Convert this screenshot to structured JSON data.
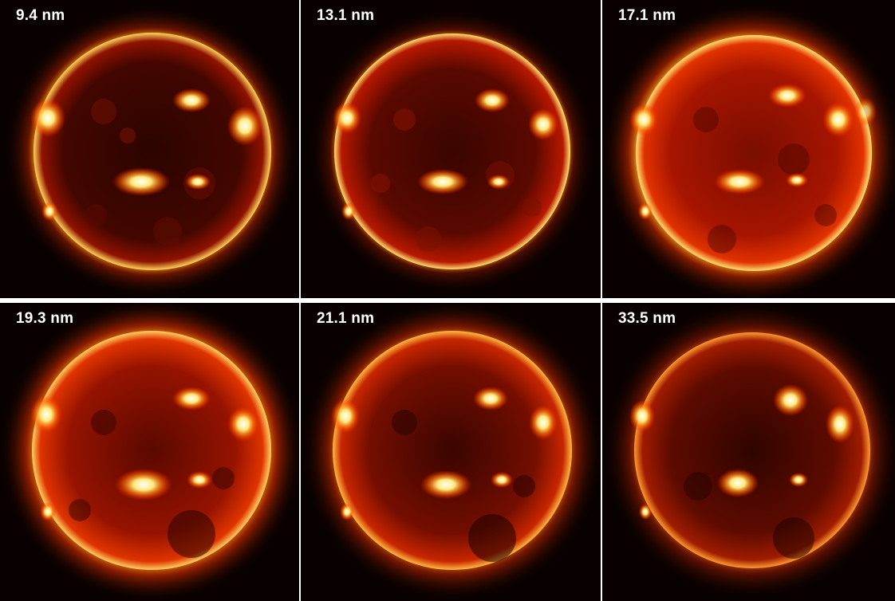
{
  "panels": [
    {
      "label": "9.4 nm"
    },
    {
      "label": "13.1 nm"
    },
    {
      "label": "17.1 nm"
    },
    {
      "label": "19.3 nm"
    },
    {
      "label": "21.1 nm"
    },
    {
      "label": "33.5 nm"
    }
  ],
  "colors": {
    "background": "#090100",
    "disk_dark": "#2a0300",
    "disk_mid": "#a11400",
    "limb_glow": "#ff9a10",
    "active_region": "#fffbe0"
  }
}
